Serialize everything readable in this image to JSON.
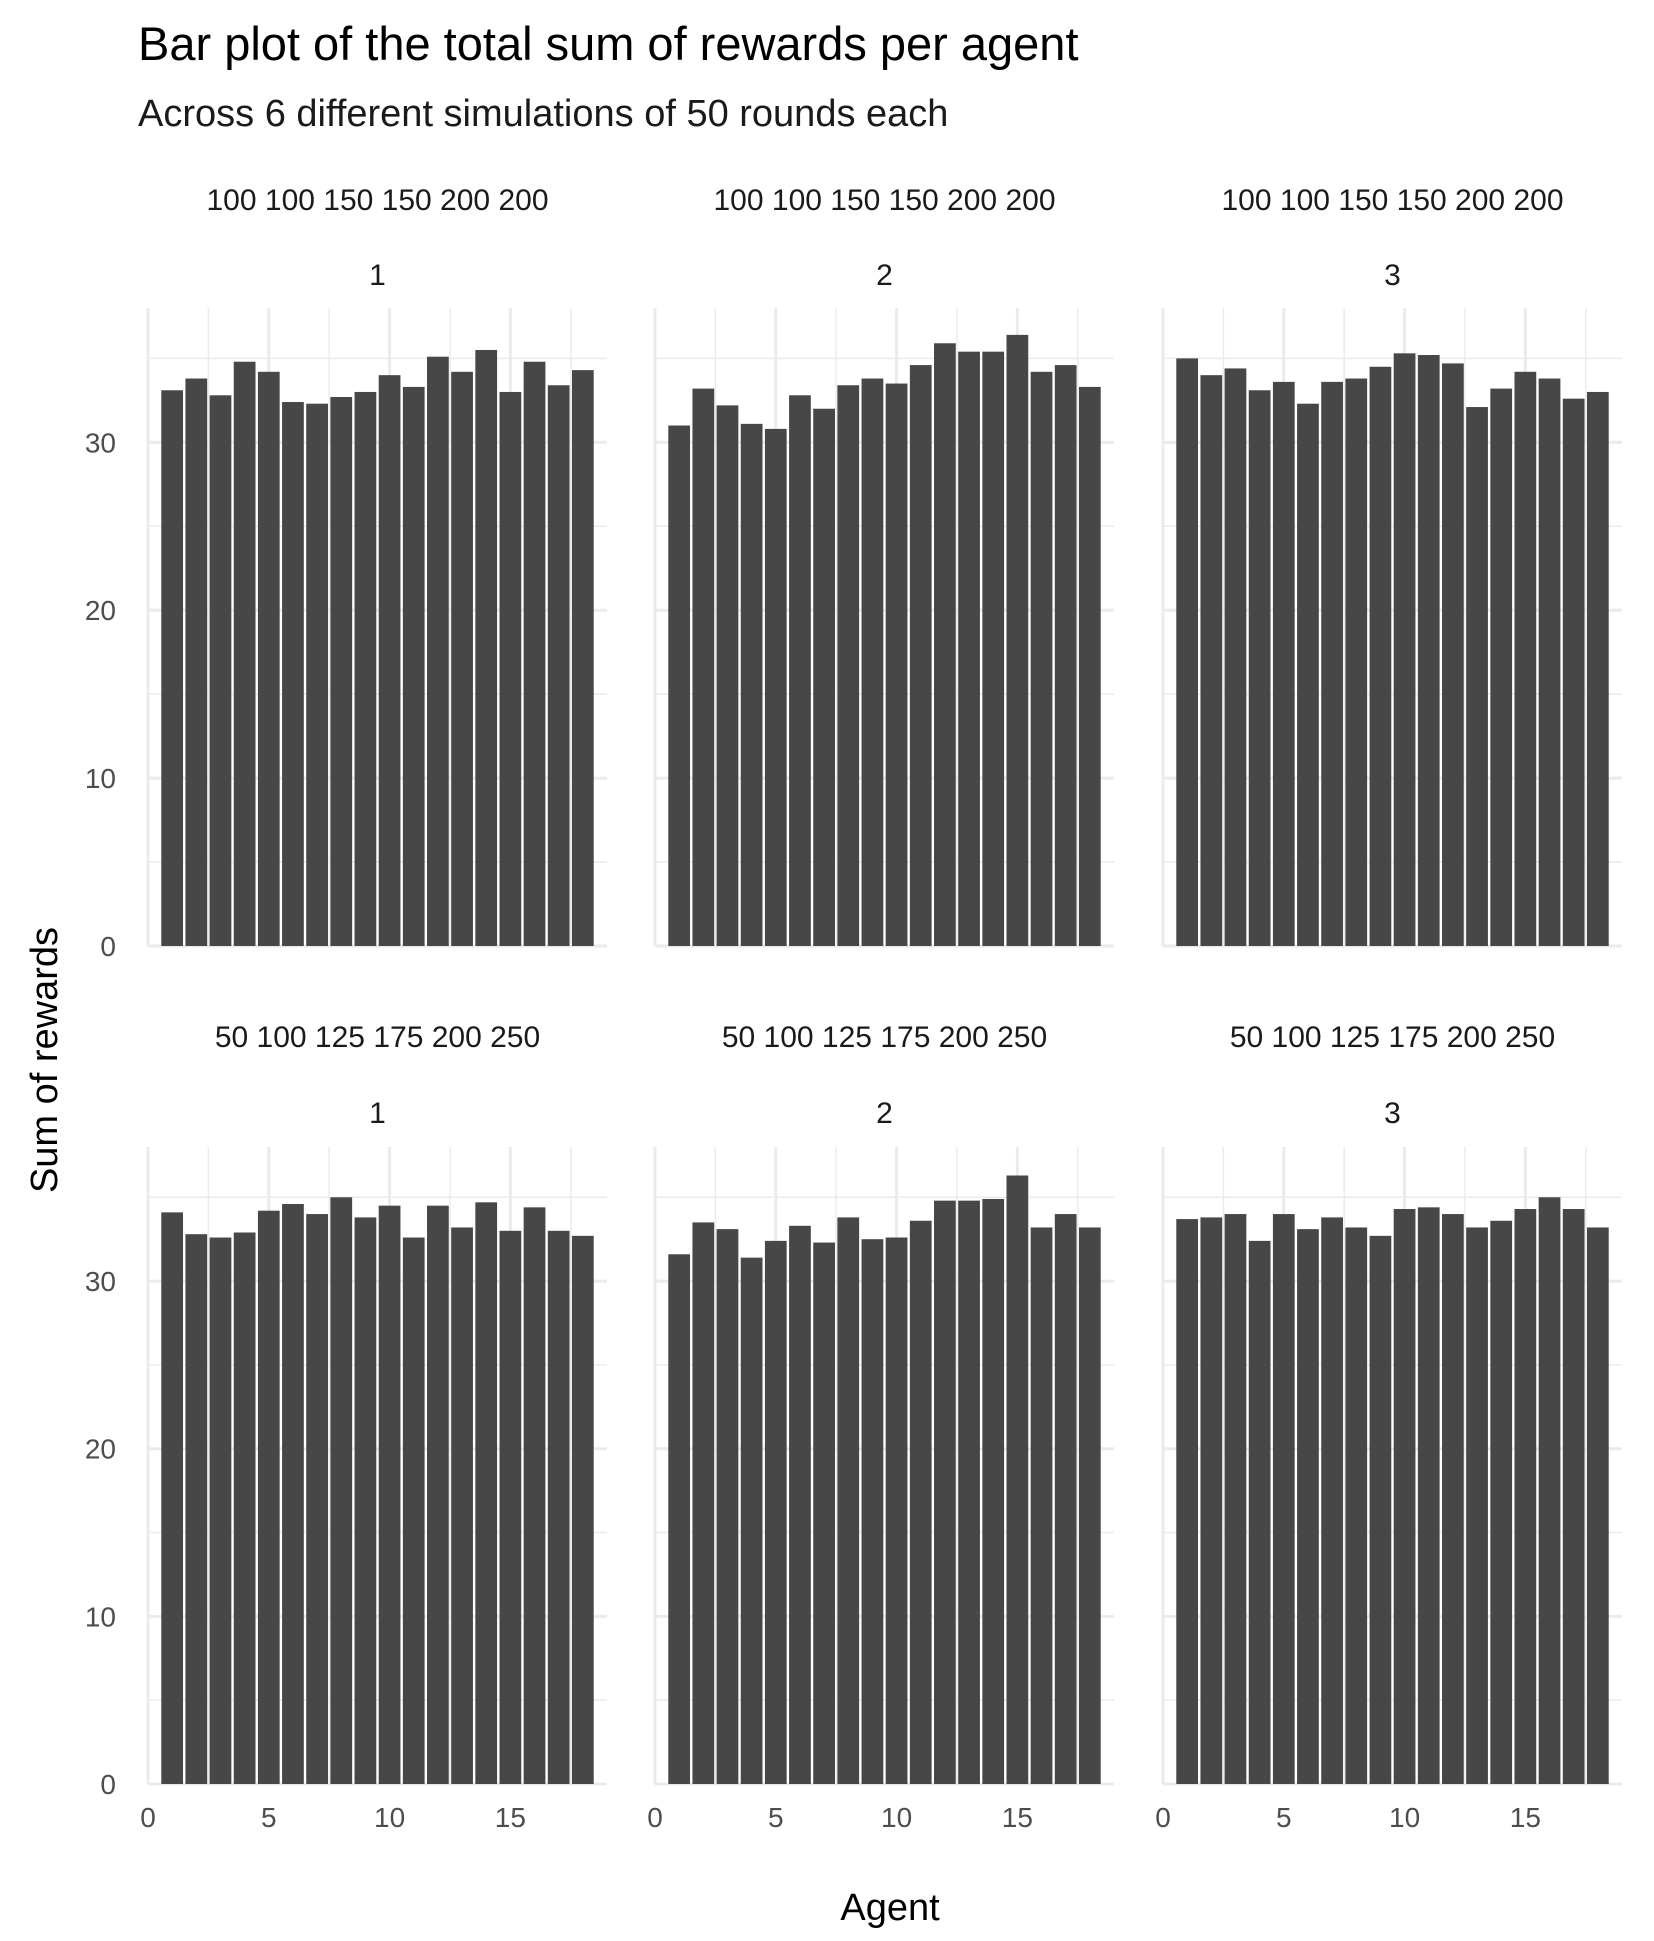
{
  "chart_data": {
    "type": "bar",
    "title": "Bar plot of the total sum of rewards per agent",
    "subtitle": "Across 6 different simulations of 50 rounds each",
    "xlabel": "Agent",
    "ylabel": "Sum of rewards",
    "xlim": [
      0,
      19
    ],
    "ylim": [
      0,
      38
    ],
    "x_ticks": [
      0,
      5,
      10,
      15
    ],
    "y_ticks": [
      0,
      10,
      20,
      30
    ],
    "bar_color": "#474747",
    "grid": true,
    "facets": [
      {
        "strip_top": "100 100 150 150 200 200",
        "strip_bottom": "1",
        "agents": [
          1,
          2,
          3,
          4,
          5,
          6,
          7,
          8,
          9,
          10,
          11,
          12,
          13,
          14,
          15,
          16,
          17,
          18
        ],
        "values": [
          33.1,
          33.8,
          32.8,
          34.8,
          34.2,
          32.4,
          32.3,
          32.7,
          33.0,
          34.0,
          33.3,
          35.1,
          34.2,
          35.5,
          33.0,
          34.8,
          33.4,
          34.3
        ]
      },
      {
        "strip_top": "100 100 150 150 200 200",
        "strip_bottom": "2",
        "agents": [
          1,
          2,
          3,
          4,
          5,
          6,
          7,
          8,
          9,
          10,
          11,
          12,
          13,
          14,
          15,
          16,
          17,
          18
        ],
        "values": [
          31.0,
          33.2,
          32.2,
          31.1,
          30.8,
          32.8,
          32.0,
          33.4,
          33.8,
          33.5,
          34.6,
          35.9,
          35.4,
          35.4,
          36.4,
          34.2,
          34.6,
          33.3
        ]
      },
      {
        "strip_top": "100 100 150 150 200 200",
        "strip_bottom": "3",
        "agents": [
          1,
          2,
          3,
          4,
          5,
          6,
          7,
          8,
          9,
          10,
          11,
          12,
          13,
          14,
          15,
          16,
          17,
          18
        ],
        "values": [
          35.0,
          34.0,
          34.4,
          33.1,
          33.6,
          32.3,
          33.6,
          33.8,
          34.5,
          35.3,
          35.2,
          34.7,
          32.1,
          33.2,
          34.2,
          33.8,
          32.6,
          33.0
        ]
      },
      {
        "strip_top": "50 100 125 175 200 250",
        "strip_bottom": "1",
        "agents": [
          1,
          2,
          3,
          4,
          5,
          6,
          7,
          8,
          9,
          10,
          11,
          12,
          13,
          14,
          15,
          16,
          17,
          18
        ],
        "values": [
          34.1,
          32.8,
          32.6,
          32.9,
          34.2,
          34.6,
          34.0,
          35.0,
          33.8,
          34.5,
          32.6,
          34.5,
          33.2,
          34.7,
          33.0,
          34.4,
          33.0,
          32.7
        ]
      },
      {
        "strip_top": "50 100 125 175 200 250",
        "strip_bottom": "2",
        "agents": [
          1,
          2,
          3,
          4,
          5,
          6,
          7,
          8,
          9,
          10,
          11,
          12,
          13,
          14,
          15,
          16,
          17,
          18
        ],
        "values": [
          31.6,
          33.5,
          33.1,
          31.4,
          32.4,
          33.3,
          32.3,
          33.8,
          32.5,
          32.6,
          33.6,
          34.8,
          34.8,
          34.9,
          36.3,
          33.2,
          34.0,
          33.2
        ]
      },
      {
        "strip_top": "50 100 125 175 200 250",
        "strip_bottom": "3",
        "agents": [
          1,
          2,
          3,
          4,
          5,
          6,
          7,
          8,
          9,
          10,
          11,
          12,
          13,
          14,
          15,
          16,
          17,
          18
        ],
        "values": [
          33.7,
          33.8,
          34.0,
          32.4,
          34.0,
          33.1,
          33.8,
          33.2,
          32.7,
          34.3,
          34.4,
          34.0,
          33.2,
          33.6,
          34.3,
          35.0,
          34.3,
          33.2
        ]
      }
    ]
  }
}
